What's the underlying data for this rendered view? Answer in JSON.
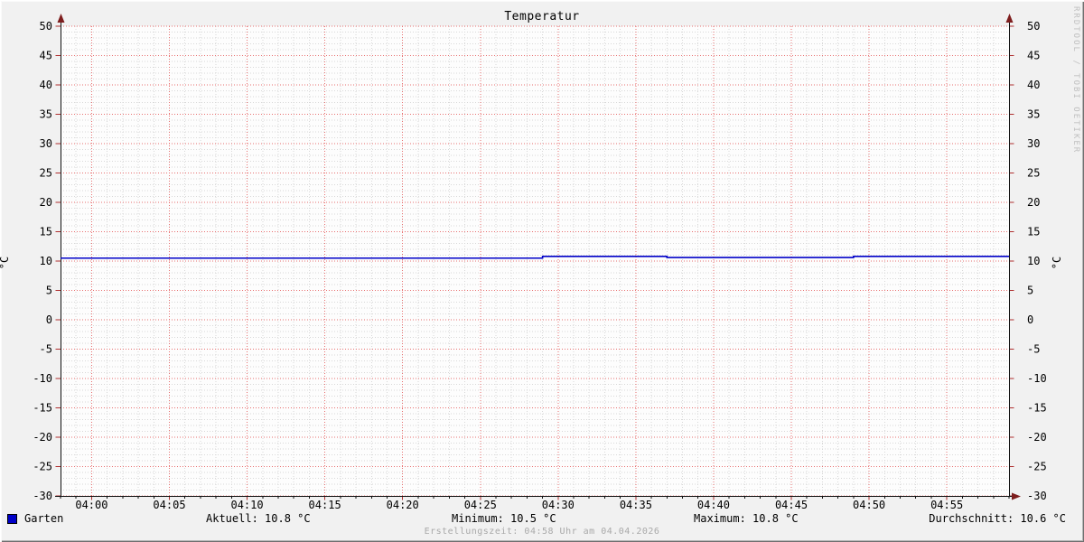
{
  "title": "Temperatur",
  "watermark": "RRDTOOL / TOBI OETIKER",
  "y_axis_unit": "°C",
  "legend": {
    "series_label": "Garten",
    "series_color": "#0000c8",
    "stats": [
      "Aktuell: 10.8 °C",
      "Minimum: 10.5 °C",
      "Maximum: 10.8 °C",
      "Durchschnitt: 10.6 °C"
    ]
  },
  "footer": {
    "creation_text": "Erstellungszeit: 04:58 Uhr am 04.04.2026"
  },
  "chart_data": {
    "type": "line",
    "title": "Temperatur",
    "xlabel": "",
    "ylabel": "°C",
    "ylim": [
      -30,
      50
    ],
    "y_major_step": 5,
    "y_minor_step": 1,
    "x_start": "03:58",
    "x_end": "04:59",
    "x_major_step_min": 5,
    "x_minor_step_min": 1,
    "x_tick_labels": [
      "04:00",
      "04:05",
      "04:10",
      "04:15",
      "04:20",
      "04:25",
      "04:30",
      "04:35",
      "04:40",
      "04:45",
      "04:50",
      "04:55"
    ],
    "grid": true,
    "legend_position": "bottom",
    "colors": {
      "grid_major": "#e87070",
      "grid_minor": "#d8d8d8",
      "axis": "#111111",
      "arrow": "#7e1e1e",
      "tick_major": "#b03030",
      "plot_bg": "#fdfdfd"
    },
    "series": [
      {
        "name": "Garten",
        "color": "#0000c8",
        "points": [
          [
            "03:58",
            10.5
          ],
          [
            "04:29",
            10.5
          ],
          [
            "04:29",
            10.8
          ],
          [
            "04:37",
            10.8
          ],
          [
            "04:37",
            10.6
          ],
          [
            "04:49",
            10.6
          ],
          [
            "04:49",
            10.8
          ],
          [
            "04:59",
            10.8
          ]
        ]
      }
    ],
    "stats": {
      "aktuell_c": 10.8,
      "minimum_c": 10.5,
      "maximum_c": 10.8,
      "durchschnitt_c": 10.6
    }
  }
}
